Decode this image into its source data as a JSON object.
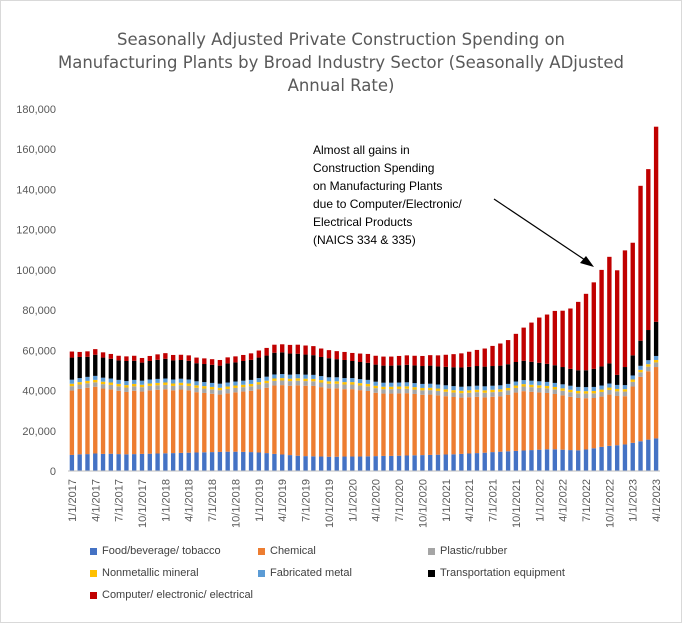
{
  "chart_data": {
    "type": "bar",
    "stacked": true,
    "title_lines": [
      "Seasonally Adjusted Private Construction Spending on",
      "Manufacturing Plants by Broad Industry Sector (Seasonally ADjusted",
      "Annual Rate)"
    ],
    "annotation_lines": [
      "Almost all gains in",
      "Construction Spending",
      "on Manufacturing Plants",
      "due to Computer/Electronic/",
      "Electrical Products",
      "(NAICS 334 & 335)"
    ],
    "ylim": [
      0,
      180000
    ],
    "y_ticks": [
      "0",
      "20,000",
      "40,000",
      "60,000",
      "80,000",
      "100,000",
      "120,000",
      "140,000",
      "160,000",
      "180,000"
    ],
    "gridlines": false,
    "legend_position": "bottom",
    "x_tick_labels": [
      "1/1/2017",
      "4/1/2017",
      "7/1/2017",
      "10/1/2017",
      "1/1/2018",
      "4/1/2018",
      "7/1/2018",
      "10/1/2018",
      "1/1/2019",
      "4/1/2019",
      "7/1/2019",
      "10/1/2019",
      "1/1/2020",
      "4/1/2020",
      "7/1/2020",
      "10/1/2020",
      "1/1/2021",
      "4/1/2021",
      "7/1/2021",
      "10/1/2021",
      "1/1/2022",
      "4/1/2022",
      "7/1/2022",
      "10/1/2022",
      "1/1/2023",
      "4/1/2023"
    ],
    "categories": [
      "2017-01",
      "2017-02",
      "2017-03",
      "2017-04",
      "2017-05",
      "2017-06",
      "2017-07",
      "2017-08",
      "2017-09",
      "2017-10",
      "2017-11",
      "2017-12",
      "2018-01",
      "2018-02",
      "2018-03",
      "2018-04",
      "2018-05",
      "2018-06",
      "2018-07",
      "2018-08",
      "2018-09",
      "2018-10",
      "2018-11",
      "2018-12",
      "2019-01",
      "2019-02",
      "2019-03",
      "2019-04",
      "2019-05",
      "2019-06",
      "2019-07",
      "2019-08",
      "2019-09",
      "2019-10",
      "2019-11",
      "2019-12",
      "2020-01",
      "2020-02",
      "2020-03",
      "2020-04",
      "2020-05",
      "2020-06",
      "2020-07",
      "2020-08",
      "2020-09",
      "2020-10",
      "2020-11",
      "2020-12",
      "2021-01",
      "2021-02",
      "2021-03",
      "2021-04",
      "2021-05",
      "2021-06",
      "2021-07",
      "2021-08",
      "2021-09",
      "2021-10",
      "2021-11",
      "2021-12",
      "2022-01",
      "2022-02",
      "2022-03",
      "2022-04",
      "2022-05",
      "2022-06",
      "2022-07",
      "2022-08",
      "2022-09",
      "2022-10",
      "2022-11",
      "2022-12",
      "2023-01",
      "2023-02",
      "2023-03",
      "2023-04"
    ],
    "series": [
      {
        "name": "Food/beverage/ tobacco",
        "color": "#4472c4",
        "values": [
          8000,
          8300,
          8400,
          8700,
          8500,
          8600,
          8400,
          8300,
          8400,
          8500,
          8600,
          8700,
          8800,
          8900,
          9000,
          9100,
          9200,
          9300,
          9400,
          9500,
          9600,
          9600,
          9500,
          9400,
          9200,
          8900,
          8500,
          8200,
          7900,
          7600,
          7400,
          7300,
          7200,
          7100,
          7100,
          7200,
          7200,
          7200,
          7300,
          7400,
          7500,
          7500,
          7600,
          7700,
          7800,
          7900,
          8000,
          8100,
          8200,
          8300,
          8500,
          8700,
          8900,
          9100,
          9400,
          9600,
          9800,
          10000,
          10200,
          10400,
          10600,
          10800,
          10800,
          10600,
          10400,
          10300,
          10700,
          11300,
          12000,
          12500,
          12800,
          13200,
          14000,
          14800,
          15600,
          16200
        ]
      },
      {
        "name": "Chemical",
        "color": "#ed7d31",
        "values": [
          32000,
          32500,
          33000,
          33200,
          32500,
          32000,
          31500,
          31000,
          31500,
          31000,
          31500,
          31700,
          31800,
          31200,
          31500,
          31000,
          30000,
          29500,
          29000,
          28500,
          29000,
          29500,
          30000,
          30500,
          31500,
          32500,
          34000,
          34500,
          34500,
          35000,
          35000,
          35000,
          34500,
          34000,
          34000,
          33500,
          33500,
          33000,
          32500,
          31500,
          31000,
          31000,
          31000,
          31000,
          30500,
          30000,
          30000,
          29500,
          29000,
          28500,
          28000,
          28000,
          28000,
          27500,
          27500,
          27500,
          28000,
          29000,
          29500,
          29000,
          28500,
          28000,
          27500,
          27000,
          26500,
          26000,
          25500,
          25000,
          25000,
          25500,
          24500,
          24000,
          28000,
          32000,
          34000,
          35500
        ]
      },
      {
        "name": "Plastic/rubber",
        "color": "#a5a5a5",
        "values": [
          2200,
          2200,
          2200,
          2200,
          2200,
          2200,
          2200,
          2200,
          2200,
          2200,
          2200,
          2200,
          2200,
          2200,
          2200,
          2200,
          2200,
          2200,
          2200,
          2200,
          2200,
          2200,
          2200,
          2200,
          2300,
          2300,
          2300,
          2300,
          2300,
          2300,
          2300,
          2300,
          2300,
          2300,
          2300,
          2300,
          2300,
          2300,
          2300,
          2300,
          2200,
          2200,
          2200,
          2200,
          2200,
          2200,
          2200,
          2200,
          2200,
          2200,
          2200,
          2200,
          2300,
          2300,
          2300,
          2300,
          2300,
          2300,
          2300,
          2300,
          2300,
          2300,
          2300,
          2300,
          2300,
          2300,
          2300,
          2300,
          2300,
          2300,
          2300,
          2300,
          2300,
          2300,
          2300,
          2300
        ]
      },
      {
        "name": "Nonmetallic mineral",
        "color": "#ffc000",
        "values": [
          1200,
          1200,
          1200,
          1200,
          1200,
          1200,
          1200,
          1200,
          1200,
          1200,
          1200,
          1200,
          1200,
          1200,
          1200,
          1200,
          1200,
          1200,
          1200,
          1200,
          1200,
          1200,
          1200,
          1200,
          1200,
          1200,
          1200,
          1200,
          1200,
          1200,
          1200,
          1200,
          1200,
          1200,
          1200,
          1200,
          1200,
          1200,
          1200,
          1200,
          1200,
          1200,
          1200,
          1200,
          1200,
          1200,
          1200,
          1200,
          1200,
          1200,
          1200,
          1200,
          1200,
          1200,
          1200,
          1200,
          1200,
          1200,
          1200,
          1200,
          1200,
          1200,
          1200,
          1200,
          1200,
          1200,
          1200,
          1200,
          1200,
          1200,
          1200,
          1200,
          1200,
          1200,
          1200,
          1200
        ]
      },
      {
        "name": "Fabricated metal",
        "color": "#5b9bd5",
        "values": [
          2000,
          2000,
          2000,
          2000,
          2000,
          2000,
          2000,
          2000,
          2000,
          2000,
          2000,
          2000,
          2000,
          2000,
          2000,
          2000,
          2000,
          2000,
          2000,
          2000,
          2000,
          2000,
          2000,
          2000,
          2000,
          2000,
          2000,
          2000,
          2000,
          2000,
          2000,
          2000,
          2000,
          2000,
          2000,
          2000,
          2000,
          2000,
          2000,
          2000,
          2000,
          2000,
          2000,
          2000,
          2000,
          2000,
          2000,
          2000,
          2000,
          2000,
          2000,
          2000,
          2000,
          2000,
          2000,
          2000,
          2000,
          2000,
          2000,
          2000,
          2000,
          2000,
          2000,
          2000,
          2000,
          2000,
          2000,
          2000,
          2000,
          2000,
          2000,
          2000,
          2000,
          2000,
          2000,
          2000
        ]
      },
      {
        "name": "Transportation equipment",
        "color": "#000000",
        "values": [
          11000,
          10500,
          10000,
          10500,
          10000,
          9800,
          9700,
          10000,
          9500,
          9000,
          9200,
          9500,
          9800,
          9500,
          9300,
          9300,
          9000,
          9000,
          9000,
          9000,
          9500,
          9500,
          9800,
          10000,
          10200,
          10500,
          10800,
          10800,
          10500,
          10200,
          10000,
          9800,
          9500,
          9500,
          9000,
          9000,
          8500,
          8500,
          8500,
          8500,
          8500,
          8500,
          8600,
          8700,
          8800,
          8900,
          9000,
          9000,
          9200,
          9400,
          9600,
          9700,
          9800,
          9800,
          9800,
          9800,
          9800,
          9700,
          9600,
          9400,
          9200,
          9000,
          8800,
          8600,
          8400,
          8300,
          8400,
          9000,
          9500,
          10000,
          5000,
          9000,
          10000,
          12500,
          15000,
          17000
        ]
      },
      {
        "name": "Computer/ electronic/ electrical",
        "color": "#c00000",
        "values": [
          3000,
          2500,
          2700,
          2800,
          2600,
          2400,
          2300,
          2300,
          2500,
          2300,
          2500,
          2700,
          2800,
          2700,
          2600,
          2700,
          2800,
          2800,
          2800,
          2800,
          3000,
          3000,
          3000,
          3200,
          3500,
          3800,
          4000,
          4000,
          4300,
          4500,
          4500,
          4500,
          4200,
          4000,
          4000,
          4000,
          4000,
          4200,
          4400,
          4400,
          4500,
          4500,
          4600,
          4700,
          4800,
          5000,
          5200,
          5500,
          6000,
          6500,
          7000,
          7500,
          8000,
          9000,
          10000,
          11000,
          12000,
          14000,
          16500,
          19500,
          22500,
          24500,
          27000,
          28000,
          30000,
          34000,
          38000,
          43000,
          48000,
          53000,
          52000,
          58000,
          56000,
          77000,
          80000,
          97000
        ]
      }
    ]
  }
}
